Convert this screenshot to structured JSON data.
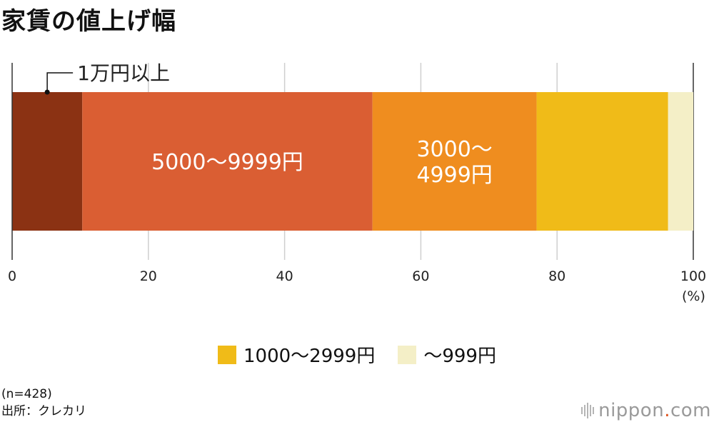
{
  "chart_data": {
    "type": "bar",
    "orientation": "horizontal",
    "stacked": true,
    "title": "家賃の値上げ幅",
    "unit": "(%)",
    "xlim": [
      0,
      100
    ],
    "xticks": [
      0,
      20,
      40,
      60,
      80,
      100
    ],
    "grid": true,
    "series": [
      {
        "name": "1万円以上",
        "value": 10.3,
        "color": "#8b3213",
        "label_lines": []
      },
      {
        "name": "5000〜9999円",
        "value": 42.6,
        "color": "#da5e33",
        "label_lines": [
          "5000〜9999円"
        ]
      },
      {
        "name": "3000〜4999円",
        "value": 24.1,
        "color": "#ef8d1f",
        "label_lines": [
          "3000〜",
          "4999円"
        ]
      },
      {
        "name": "1000〜2999円",
        "value": 19.3,
        "color": "#f0bb18",
        "label_lines": []
      },
      {
        "name": "〜999円",
        "value": 3.7,
        "color": "#f4efc7",
        "label_lines": []
      }
    ],
    "callout": {
      "text": "1万円以上"
    },
    "legend": [
      {
        "label": "1000〜2999円",
        "color": "#f0bb18"
      },
      {
        "label": "〜999円",
        "color": "#f4efc7"
      }
    ]
  },
  "footnote": {
    "sample": "(n=428)",
    "source": "出所：クレカリ"
  },
  "brand": {
    "name": "nippon",
    "dot": ".",
    "suffix": "com"
  }
}
